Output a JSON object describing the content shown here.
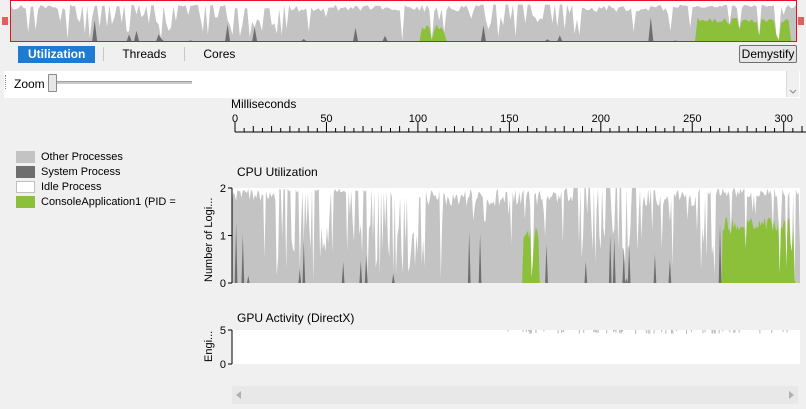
{
  "tabs": [
    {
      "label": "Utilization",
      "active": true
    },
    {
      "label": "Threads",
      "active": false
    },
    {
      "label": "Cores",
      "active": false
    }
  ],
  "demystify_label": "Demystify",
  "zoom": {
    "label": "Zoom",
    "value": 0
  },
  "timeline": {
    "title": "Milliseconds",
    "ticks": [
      "0",
      "50",
      "100",
      "150",
      "200",
      "250",
      "300"
    ]
  },
  "legend": [
    {
      "label": "Other Processes",
      "color": "#c3c3c3"
    },
    {
      "label": "System Process",
      "color": "#6e6e6e"
    },
    {
      "label": "Idle Process",
      "color": "#ffffff"
    },
    {
      "label": "ConsoleApplication1 (PID = ",
      "color": "#8cbf3a"
    }
  ],
  "cpu": {
    "title": "CPU Utilization",
    "ylabel": "Number of Logi...",
    "yticks": [
      "2",
      "1",
      "0"
    ]
  },
  "gpu": {
    "title": "GPU Activity (DirectX)",
    "ylabel": "Engi...",
    "yticks": [
      "5",
      "0"
    ]
  },
  "colors": {
    "accent": "#1f7bd1",
    "other": "#c3c3c3",
    "system": "#6e6e6e",
    "app": "#8cbf3a",
    "selection": "#e81123"
  },
  "icons": {
    "zoom-grip": "dotted-grip",
    "scroll-left": "triangle-left",
    "scroll-right": "triangle-right"
  }
}
